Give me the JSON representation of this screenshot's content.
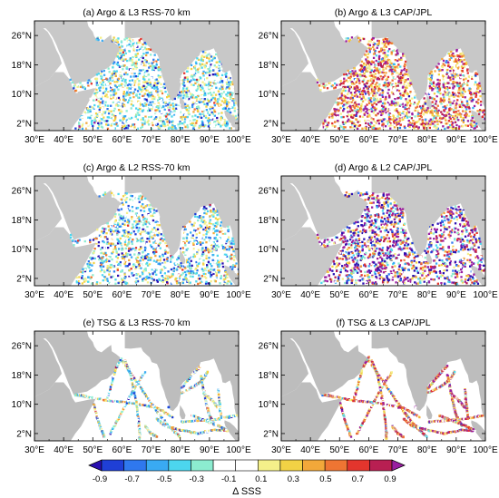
{
  "figure": {
    "panels": [
      {
        "title": "(a) Argo & L3 RSS-70 km",
        "source": "Argo",
        "bias": -0.15,
        "spread": 0.3,
        "density": "high"
      },
      {
        "title": "(b) Argo & L3 CAP/JPL",
        "source": "Argo",
        "bias": 0.35,
        "spread": 0.45,
        "density": "high"
      },
      {
        "title": "(c) Argo & L2 RSS-70 km",
        "source": "Argo",
        "bias": -0.2,
        "spread": 0.35,
        "density": "medium"
      },
      {
        "title": "(d) Argo & L2 CAP/JPL",
        "source": "Argo",
        "bias": 0.1,
        "spread": 0.9,
        "density": "medium"
      },
      {
        "title": "(e) TSG & L3 RSS-70 km",
        "source": "TSG",
        "bias": -0.1,
        "spread": 0.35,
        "density": "tracks"
      },
      {
        "title": "(f) TSG & L3 CAP/JPL",
        "source": "TSG",
        "bias": 0.4,
        "spread": 0.45,
        "density": "tracks"
      }
    ],
    "x_ticks": [
      "30°E",
      "40°E",
      "50°E",
      "60°E",
      "70°E",
      "80°E",
      "90°E",
      "100°E"
    ],
    "y_ticks": [
      "2°N",
      "10°N",
      "18°N",
      "26°N"
    ],
    "colorbar": {
      "label": "Δ SSS",
      "ticks": [
        "-0.9",
        "-0.7",
        "-0.5",
        "-0.3",
        "-0.1",
        "0.1",
        "0.3",
        "0.5",
        "0.7",
        "0.9"
      ],
      "colors": [
        "#2a0fb0",
        "#1f3fd6",
        "#2f78ee",
        "#39aaf3",
        "#4cd6ee",
        "#8cecd0",
        "#ffffff",
        "#ffffff",
        "#f4f08a",
        "#f2d245",
        "#f2a83a",
        "#ee7533",
        "#e3352d",
        "#b81f52",
        "#9a1ea0"
      ]
    }
  },
  "chart_data": {
    "type": "scatter",
    "description_units": "SSS difference (Δ SSS) at in-situ locations over the northern Indian Ocean",
    "xlim": [
      30,
      100
    ],
    "ylim": [
      0,
      30
    ],
    "x_tick_values": [
      30,
      40,
      50,
      60,
      70,
      80,
      90,
      100
    ],
    "y_tick_values": [
      2,
      10,
      18,
      26
    ],
    "color_range": [
      -0.9,
      0.9
    ],
    "panels": [
      "(a) Argo & L3 RSS-70 km",
      "(b) Argo & L3 CAP/JPL",
      "(c) Argo & L2 RSS-70 km",
      "(d) Argo & L2 CAP/JPL",
      "(e) TSG & L3 RSS-70 km",
      "(f) TSG & L3 CAP/JPL"
    ]
  }
}
